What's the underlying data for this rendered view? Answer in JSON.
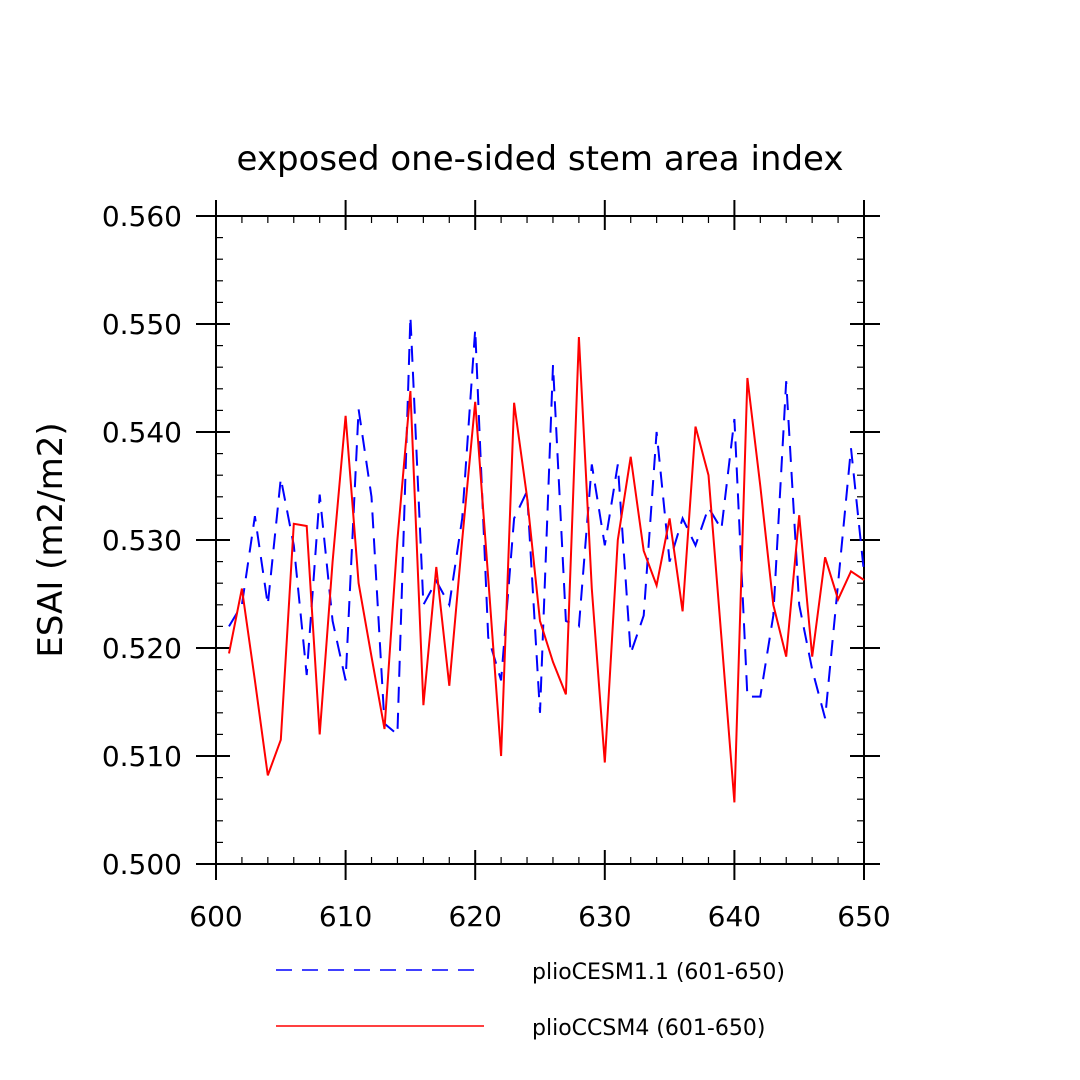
{
  "chart_data": {
    "type": "line",
    "title": "exposed one-sided stem area index",
    "xlabel": "",
    "ylabel": "ESAI  (m2/m2)",
    "xlim": [
      600,
      650
    ],
    "ylim": [
      0.5,
      0.56
    ],
    "x_ticks": [
      "600",
      "610",
      "620",
      "630",
      "640",
      "650"
    ],
    "y_ticks": [
      "0.500",
      "0.510",
      "0.520",
      "0.530",
      "0.540",
      "0.550",
      "0.560"
    ],
    "grid": false,
    "legend_position": "bottom",
    "x": [
      601,
      602,
      603,
      604,
      605,
      606,
      607,
      608,
      609,
      610,
      611,
      612,
      613,
      614,
      615,
      616,
      617,
      618,
      619,
      620,
      621,
      622,
      623,
      624,
      625,
      626,
      627,
      628,
      629,
      630,
      631,
      632,
      633,
      634,
      635,
      636,
      637,
      638,
      639,
      640,
      641,
      642,
      643,
      644,
      645,
      646,
      647,
      648,
      649,
      650
    ],
    "series": [
      {
        "name": "plioCESM1.1 (601-650)",
        "color": "#0000ff",
        "dash": "dashed",
        "values": [
          0.522,
          0.524,
          0.5322,
          0.524,
          0.5357,
          0.5295,
          0.5175,
          0.5342,
          0.5225,
          0.517,
          0.5421,
          0.534,
          0.513,
          0.512,
          0.5507,
          0.524,
          0.5262,
          0.524,
          0.532,
          0.5495,
          0.521,
          0.517,
          0.532,
          0.5345,
          0.514,
          0.5462,
          0.5225,
          0.522,
          0.537,
          0.5295,
          0.537,
          0.5195,
          0.523,
          0.54,
          0.528,
          0.532,
          0.5295,
          0.533,
          0.531,
          0.5412,
          0.5155,
          0.5155,
          0.523,
          0.5447,
          0.524,
          0.518,
          0.5135,
          0.526,
          0.5385,
          0.527
        ]
      },
      {
        "name": "plioCCSM4 (601-650)",
        "color": "#ff0000",
        "dash": "solid",
        "values": [
          0.5195,
          0.5255,
          0.517,
          0.5082,
          0.5115,
          0.5315,
          0.5313,
          0.512,
          0.528,
          0.5415,
          0.526,
          0.5192,
          0.5125,
          0.53,
          0.5438,
          0.5147,
          0.5275,
          0.5165,
          0.53,
          0.5428,
          0.5265,
          0.51,
          0.5427,
          0.534,
          0.5225,
          0.5187,
          0.5157,
          0.5488,
          0.5255,
          0.5094,
          0.53,
          0.5377,
          0.529,
          0.5258,
          0.532,
          0.5234,
          0.5405,
          0.536,
          0.521,
          0.5057,
          0.545,
          0.535,
          0.524,
          0.5192,
          0.5323,
          0.5192,
          0.5284,
          0.5245,
          0.5271,
          0.5263
        ]
      }
    ]
  }
}
